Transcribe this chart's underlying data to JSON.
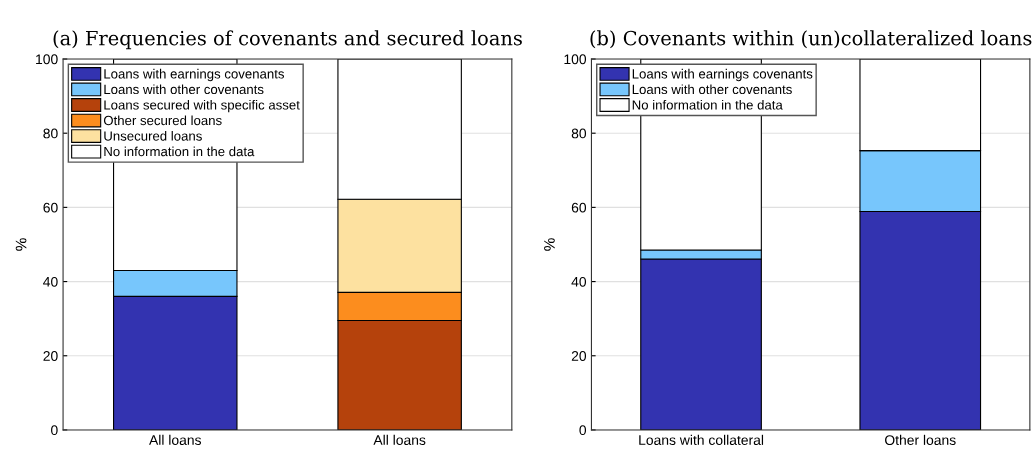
{
  "chart_data": [
    {
      "type": "bar",
      "title": "(a) Frequencies of covenants and secured loans",
      "ylabel": "%",
      "categories": [
        "All loans",
        "All loans"
      ],
      "stacked": true,
      "ylim": [
        0,
        100
      ],
      "yticks": [
        0,
        20,
        40,
        60,
        80,
        100
      ],
      "grid": "y",
      "legend": "top left",
      "series": [
        {
          "name": "Loans with earnings covenants",
          "color": "#3333b0",
          "values": [
            36,
            null
          ]
        },
        {
          "name": "Loans with other covenants",
          "color": "#77c6fc",
          "values": [
            7,
            null
          ]
        },
        {
          "name": "Loans secured with specific asset",
          "color": "#b5420c",
          "values": [
            null,
            29.5
          ]
        },
        {
          "name": "Other secured loans",
          "color": "#fc8d1e",
          "values": [
            null,
            7.6
          ]
        },
        {
          "name": "Unsecured loans",
          "color": "#fde1a0",
          "values": [
            null,
            25.1
          ]
        },
        {
          "name": "No information in the data",
          "color": "#ffffff",
          "values": [
            57,
            37.8
          ]
        }
      ]
    },
    {
      "type": "bar",
      "title": "(b) Covenants within (un)collateralized loans",
      "ylabel": "%",
      "categories": [
        "Loans with collateral",
        "Other loans"
      ],
      "stacked": true,
      "ylim": [
        0,
        100
      ],
      "yticks": [
        0,
        20,
        40,
        60,
        80,
        100
      ],
      "grid": "y",
      "legend": "top left",
      "series": [
        {
          "name": "Loans with earnings covenants",
          "color": "#3333b0",
          "values": [
            46.1,
            58.9
          ]
        },
        {
          "name": "Loans with other covenants",
          "color": "#77c6fc",
          "values": [
            2.4,
            16.4
          ]
        },
        {
          "name": "No information in the data",
          "color": "#ffffff",
          "values": [
            51.5,
            24.7
          ]
        }
      ]
    }
  ]
}
